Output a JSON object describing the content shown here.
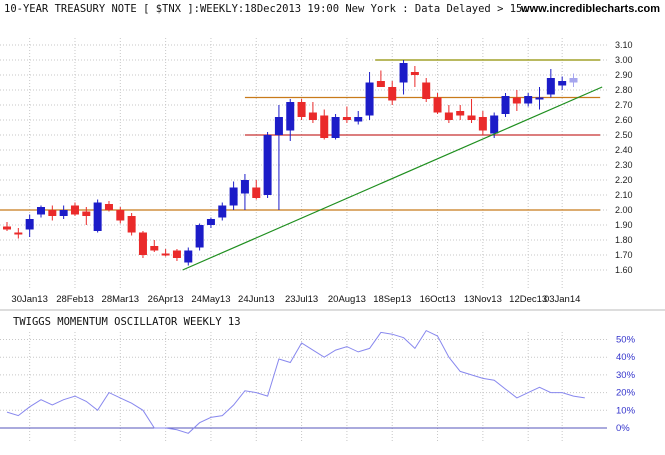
{
  "header": {
    "title": "10-YEAR TREASURY NOTE [ $TNX ]:WEEKLY:18Dec2013 19:00 New York : Data Delayed > 15..",
    "site": "www.incrediblecharts.com"
  },
  "colors": {
    "up": "#1c1cc8",
    "down": "#ea2a2a",
    "forming": "#a6a6ee",
    "support_trendline": "#1f8f1f",
    "resistance_olive": "#8f8f00",
    "level_orange": "#c87a1a",
    "level_red": "#c83030",
    "oscillator_line": "#8888ee",
    "zero_line": "#5555bb",
    "grid": "#c7c7c7"
  },
  "chart_data": [
    {
      "type": "candlestick",
      "title": "10-YEAR TREASURY NOTE [ $TNX ]:WEEKLY:18Dec2013 19:00 New York : Data Delayed > 15..",
      "ylim": [
        1.55,
        3.15
      ],
      "yticks": [
        "3.10",
        "3.00",
        "2.90",
        "2.80",
        "2.70",
        "2.60",
        "2.50",
        "2.40",
        "2.30",
        "2.20",
        "2.10",
        "2.00",
        "1.90",
        "1.80",
        "1.70",
        "1.60"
      ],
      "xticks": [
        "30Jan13",
        "28Feb13",
        "28Mar13",
        "26Apr13",
        "24May13",
        "24Jun13",
        "23Jul13",
        "20Aug13",
        "18Sep13",
        "16Oct13",
        "13Nov13",
        "12Dec13",
        "03Jan14"
      ],
      "xtick_week_index": [
        2,
        6,
        10,
        14,
        18,
        22,
        26,
        30,
        34,
        38,
        42,
        46,
        49
      ],
      "grid": true,
      "candles": [
        {
          "o": 1.89,
          "h": 1.92,
          "l": 1.86,
          "c": 1.87
        },
        {
          "o": 1.85,
          "h": 1.88,
          "l": 1.81,
          "c": 1.84
        },
        {
          "o": 1.87,
          "h": 1.97,
          "l": 1.82,
          "c": 1.94
        },
        {
          "o": 1.97,
          "h": 2.03,
          "l": 1.95,
          "c": 2.02
        },
        {
          "o": 2.0,
          "h": 2.03,
          "l": 1.93,
          "c": 1.96
        },
        {
          "o": 1.96,
          "h": 2.03,
          "l": 1.94,
          "c": 2.0
        },
        {
          "o": 2.03,
          "h": 2.05,
          "l": 1.96,
          "c": 1.97
        },
        {
          "o": 1.99,
          "h": 2.02,
          "l": 1.9,
          "c": 1.96
        },
        {
          "o": 1.86,
          "h": 2.07,
          "l": 1.85,
          "c": 2.05
        },
        {
          "o": 2.04,
          "h": 2.06,
          "l": 1.99,
          "c": 2.0
        },
        {
          "o": 2.0,
          "h": 2.02,
          "l": 1.91,
          "c": 1.93
        },
        {
          "o": 1.96,
          "h": 1.98,
          "l": 1.83,
          "c": 1.85
        },
        {
          "o": 1.85,
          "h": 1.86,
          "l": 1.68,
          "c": 1.7
        },
        {
          "o": 1.76,
          "h": 1.8,
          "l": 1.72,
          "c": 1.73
        },
        {
          "o": 1.71,
          "h": 1.74,
          "l": 1.69,
          "c": 1.7
        },
        {
          "o": 1.73,
          "h": 1.74,
          "l": 1.66,
          "c": 1.68
        },
        {
          "o": 1.65,
          "h": 1.75,
          "l": 1.63,
          "c": 1.73
        },
        {
          "o": 1.75,
          "h": 1.91,
          "l": 1.73,
          "c": 1.9
        },
        {
          "o": 1.9,
          "h": 1.95,
          "l": 1.88,
          "c": 1.94
        },
        {
          "o": 1.95,
          "h": 2.05,
          "l": 1.93,
          "c": 2.03
        },
        {
          "o": 2.03,
          "h": 2.19,
          "l": 2.0,
          "c": 2.15
        },
        {
          "o": 2.11,
          "h": 2.24,
          "l": 2.0,
          "c": 2.2
        },
        {
          "o": 2.15,
          "h": 2.2,
          "l": 2.07,
          "c": 2.08
        },
        {
          "o": 2.1,
          "h": 2.52,
          "l": 2.08,
          "c": 2.5
        },
        {
          "o": 2.5,
          "h": 2.7,
          "l": 2.0,
          "c": 2.62
        },
        {
          "o": 2.53,
          "h": 2.74,
          "l": 2.46,
          "c": 2.72
        },
        {
          "o": 2.72,
          "h": 2.74,
          "l": 2.6,
          "c": 2.62
        },
        {
          "o": 2.65,
          "h": 2.72,
          "l": 2.58,
          "c": 2.6
        },
        {
          "o": 2.63,
          "h": 2.67,
          "l": 2.47,
          "c": 2.48
        },
        {
          "o": 2.48,
          "h": 2.64,
          "l": 2.47,
          "c": 2.62
        },
        {
          "o": 2.62,
          "h": 2.69,
          "l": 2.58,
          "c": 2.6
        },
        {
          "o": 2.59,
          "h": 2.66,
          "l": 2.57,
          "c": 2.62
        },
        {
          "o": 2.63,
          "h": 2.92,
          "l": 2.6,
          "c": 2.85
        },
        {
          "o": 2.86,
          "h": 2.93,
          "l": 2.82,
          "c": 2.82
        },
        {
          "o": 2.82,
          "h": 2.86,
          "l": 2.7,
          "c": 2.73
        },
        {
          "o": 2.85,
          "h": 3.0,
          "l": 2.77,
          "c": 2.98
        },
        {
          "o": 2.92,
          "h": 2.96,
          "l": 2.82,
          "c": 2.9
        },
        {
          "o": 2.85,
          "h": 2.88,
          "l": 2.72,
          "c": 2.74
        },
        {
          "o": 2.75,
          "h": 2.78,
          "l": 2.64,
          "c": 2.65
        },
        {
          "o": 2.65,
          "h": 2.7,
          "l": 2.58,
          "c": 2.6
        },
        {
          "o": 2.66,
          "h": 2.7,
          "l": 2.6,
          "c": 2.63
        },
        {
          "o": 2.63,
          "h": 2.74,
          "l": 2.58,
          "c": 2.6
        },
        {
          "o": 2.62,
          "h": 2.66,
          "l": 2.5,
          "c": 2.53
        },
        {
          "o": 2.51,
          "h": 2.65,
          "l": 2.48,
          "c": 2.63
        },
        {
          "o": 2.64,
          "h": 2.78,
          "l": 2.62,
          "c": 2.76
        },
        {
          "o": 2.75,
          "h": 2.8,
          "l": 2.66,
          "c": 2.71
        },
        {
          "o": 2.71,
          "h": 2.78,
          "l": 2.69,
          "c": 2.76
        },
        {
          "o": 2.74,
          "h": 2.82,
          "l": 2.67,
          "c": 2.75
        },
        {
          "o": 2.77,
          "h": 2.94,
          "l": 2.75,
          "c": 2.88
        },
        {
          "o": 2.83,
          "h": 2.89,
          "l": 2.8,
          "c": 2.86
        },
        {
          "o": 2.85,
          "h": 2.91,
          "l": 2.82,
          "c": 2.88
        }
      ],
      "forming_candle_index": 50,
      "horizontal_levels": [
        {
          "y": 3.0,
          "from_week": 32.5,
          "to_week": 52,
          "color_key": "resistance_olive"
        },
        {
          "y": 2.75,
          "from_week": 21,
          "to_week": 52,
          "color_key": "level_orange"
        },
        {
          "y": 2.5,
          "from_week": 21,
          "to_week": 52,
          "color_key": "level_red"
        },
        {
          "y": 2.0,
          "from_week": -1,
          "to_week": 52,
          "color_key": "level_orange"
        }
      ],
      "trendlines": [
        {
          "from": {
            "week": 15.5,
            "y": 1.6
          },
          "to": {
            "week": 52,
            "y": 2.82
          },
          "color_key": "support_trendline"
        }
      ]
    },
    {
      "type": "line",
      "title": "TWIGGS MOMENTUM OSCILLATOR WEEKLY 13",
      "ylim": [
        -3,
        57
      ],
      "yticks": [
        "50%",
        "40%",
        "30%",
        "20%",
        "10%",
        "0%"
      ],
      "zero_line": 0,
      "grid": true,
      "values": [
        9,
        7,
        12,
        16,
        13,
        16,
        18,
        15,
        10,
        20,
        17,
        14,
        10,
        0,
        0,
        -1,
        -3,
        3,
        6,
        7,
        13,
        21,
        20,
        18,
        39,
        37,
        48,
        44,
        40,
        44,
        46,
        43,
        45,
        54,
        53,
        51,
        45,
        55,
        52,
        40,
        32,
        30,
        28,
        27,
        22,
        17,
        20,
        23,
        20,
        20,
        18,
        17
      ]
    }
  ]
}
